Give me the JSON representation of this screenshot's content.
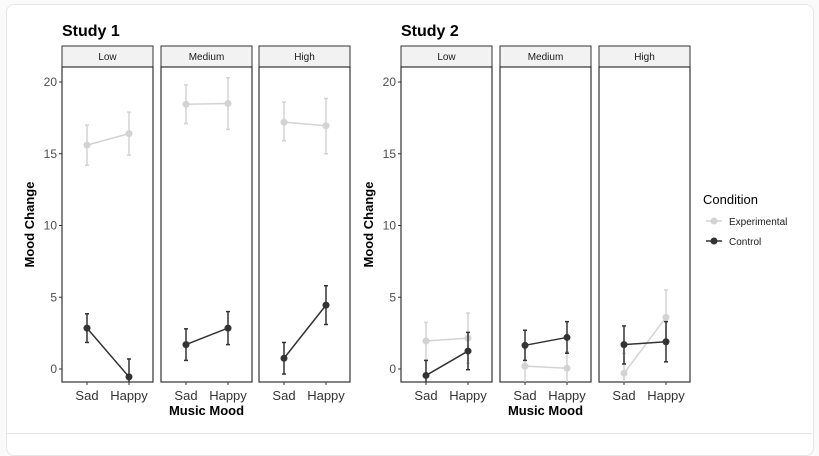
{
  "chart_data": {
    "type": "line",
    "facets": [
      "Low",
      "Medium",
      "High"
    ],
    "categories": [
      "Sad",
      "Happy"
    ],
    "xlabel": "Music Mood",
    "ylabel": "Mood Change",
    "ylim": [
      -0.9,
      21
    ],
    "yticks": [
      0,
      5,
      10,
      15,
      20
    ],
    "grid": false,
    "legend": {
      "title": "Condition",
      "placement": "right",
      "entries": [
        "Experimental",
        "Control"
      ]
    },
    "colors": {
      "Experimental": "#d3d3d3",
      "Control": "#333333"
    },
    "studies": [
      {
        "title": "Study 1",
        "panels": [
          {
            "facet": "Low",
            "series": [
              {
                "name": "Experimental",
                "values": [
                  15.6,
                  16.4
                ],
                "lower": [
                  14.2,
                  14.9
                ],
                "upper": [
                  17.0,
                  17.9
                ]
              },
              {
                "name": "Control",
                "values": [
                  2.85,
                  -0.55
                ],
                "lower": [
                  1.85,
                  -1.0
                ],
                "upper": [
                  3.85,
                  0.7
                ]
              }
            ]
          },
          {
            "facet": "Medium",
            "series": [
              {
                "name": "Experimental",
                "values": [
                  18.45,
                  18.5
                ],
                "lower": [
                  17.1,
                  16.7
                ],
                "upper": [
                  19.8,
                  20.3
                ]
              },
              {
                "name": "Control",
                "values": [
                  1.7,
                  2.85
                ],
                "lower": [
                  0.6,
                  1.7
                ],
                "upper": [
                  2.8,
                  4.0
                ]
              }
            ]
          },
          {
            "facet": "High",
            "series": [
              {
                "name": "Experimental",
                "values": [
                  17.2,
                  16.95
                ],
                "lower": [
                  15.9,
                  15.0
                ],
                "upper": [
                  18.6,
                  18.85
                ]
              },
              {
                "name": "Control",
                "values": [
                  0.75,
                  4.45
                ],
                "lower": [
                  -0.35,
                  3.1
                ],
                "upper": [
                  1.85,
                  5.8
                ]
              }
            ]
          }
        ]
      },
      {
        "title": "Study 2",
        "panels": [
          {
            "facet": "Low",
            "series": [
              {
                "name": "Experimental",
                "values": [
                  1.95,
                  2.15
                ],
                "lower": [
                  0.6,
                  0.4
                ],
                "upper": [
                  3.25,
                  3.9
                ]
              },
              {
                "name": "Control",
                "values": [
                  -0.45,
                  1.25
                ],
                "lower": [
                  -1.0,
                  -0.05
                ],
                "upper": [
                  0.6,
                  2.55
                ]
              }
            ]
          },
          {
            "facet": "Medium",
            "series": [
              {
                "name": "Experimental",
                "values": [
                  0.2,
                  0.05
                ],
                "lower": [
                  -1.0,
                  -1.0
                ],
                "upper": [
                  1.4,
                  1.2
                ]
              },
              {
                "name": "Control",
                "values": [
                  1.65,
                  2.2
                ],
                "lower": [
                  0.6,
                  1.1
                ],
                "upper": [
                  2.7,
                  3.3
                ]
              }
            ]
          },
          {
            "facet": "High",
            "series": [
              {
                "name": "Experimental",
                "values": [
                  -0.3,
                  3.6
                ],
                "lower": [
                  -1.0,
                  1.7
                ],
                "upper": [
                  1.1,
                  5.5
                ]
              },
              {
                "name": "Control",
                "values": [
                  1.7,
                  1.9
                ],
                "lower": [
                  0.35,
                  0.5
                ],
                "upper": [
                  3.0,
                  3.3
                ]
              }
            ]
          }
        ]
      }
    ]
  }
}
